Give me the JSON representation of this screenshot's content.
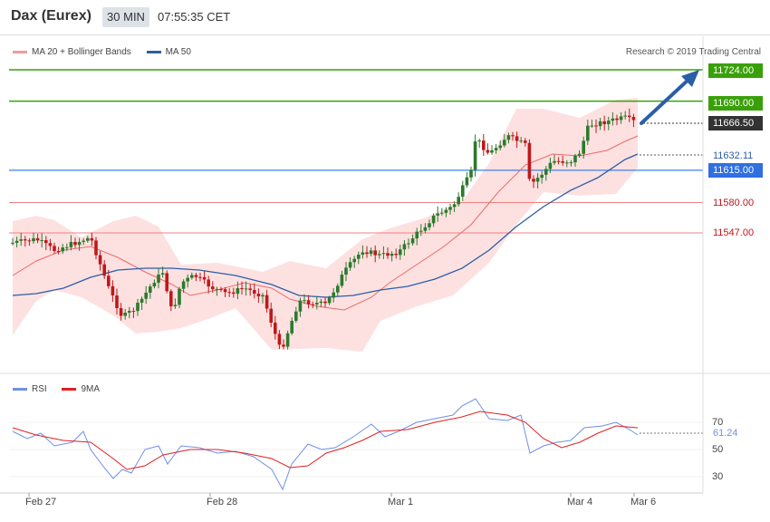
{
  "header": {
    "instrument": "Dax (Eurex)",
    "timeframe": "30 MIN",
    "time": "07:55:35 CET"
  },
  "legend": {
    "ma20_label": "MA 20 + Bollinger Bands",
    "ma50_label": "MA 50",
    "copyright": "Research © 2019 Trading Central"
  },
  "rsi_legend": {
    "rsi_label": "RSI",
    "ma9_label": "9MA"
  },
  "colors": {
    "green_level": "#3aa00a",
    "red_level": "#f08080",
    "blue_level": "#3f7ff0",
    "current": "#333333",
    "arrow": "#2b5ea7",
    "ma50": "#2b5ea7",
    "ma20": "#ec6a6a",
    "band_fill": "#fde1e1",
    "rsi_line": "#6f8fe8",
    "ma9_line": "#e02020",
    "up": "#2b7a2b",
    "down": "#c0181b"
  },
  "price_labels": {
    "r2": "11724.00",
    "r1": "11690.00",
    "current": "11666.50",
    "ma_value": "11632.11",
    "s1": "11615.00",
    "s2": "11580.00",
    "s3": "11547.00"
  },
  "rsi": {
    "value_label": "61.24",
    "ticks": [
      "70",
      "50",
      "30"
    ]
  },
  "x_labels": [
    "Feb 27",
    "Feb 28",
    "Mar 1",
    "Mar 4",
    "Mar 6"
  ],
  "chart_data": {
    "type": "candlestick",
    "title": "",
    "levels": {
      "resistance": [
        11724.0,
        11690.0
      ],
      "support": [
        11615.0,
        11580.0,
        11547.0
      ],
      "current": 11666.5,
      "ma": 11632.11
    },
    "series": [
      {
        "name": "MA 20 + Bollinger Bands"
      },
      {
        "name": "MA 50"
      },
      {
        "name": "RSI",
        "last": 61.24
      },
      {
        "name": "9MA"
      }
    ],
    "x_axis_labels": [
      "Feb 27",
      "Feb 28",
      "Mar 1",
      "Mar 4",
      "Mar 6"
    ],
    "rsi_axis_ticks": [
      70,
      50,
      30
    ],
    "forecast": "Arrow pointing up toward 11724.00"
  }
}
